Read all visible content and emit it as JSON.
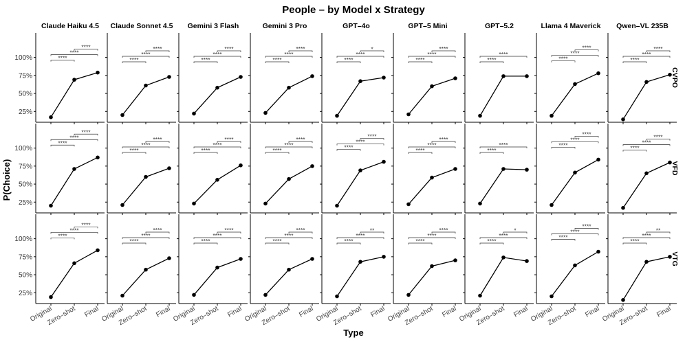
{
  "chart_data": {
    "type": "line",
    "title": "People – by Model x Strategy",
    "xlabel": "Type",
    "ylabel": "P(Choice)",
    "categories": [
      "Original",
      "Zero–shot",
      "Final"
    ],
    "y_ticks": [
      "25%",
      "50%",
      "75%",
      "100%"
    ],
    "y_tick_values": [
      0.25,
      0.5,
      0.75,
      1.0
    ],
    "ylim": [
      0.1,
      1.34
    ],
    "models": [
      "Claude Haiku 4.5",
      "Claude Sonnet 4.5",
      "Gemini 3 Flash",
      "Gemini 3 Pro",
      "GPT–4o",
      "GPT–5 Mini",
      "GPT–5.2",
      "Llama 4 Maverick",
      "Qwen–VL 235B"
    ],
    "strategies": [
      "CVPO",
      "VFD",
      "VTG"
    ],
    "values": [
      [
        [
          0.17,
          0.69,
          0.79
        ],
        [
          0.2,
          0.61,
          0.73
        ],
        [
          0.22,
          0.58,
          0.73
        ],
        [
          0.23,
          0.58,
          0.74
        ],
        [
          0.19,
          0.67,
          0.72
        ],
        [
          0.21,
          0.6,
          0.71
        ],
        [
          0.19,
          0.74,
          0.74
        ],
        [
          0.19,
          0.63,
          0.78
        ],
        [
          0.14,
          0.66,
          0.76
        ]
      ],
      [
        [
          0.2,
          0.71,
          0.87
        ],
        [
          0.21,
          0.6,
          0.72
        ],
        [
          0.23,
          0.56,
          0.76
        ],
        [
          0.23,
          0.57,
          0.75
        ],
        [
          0.2,
          0.69,
          0.81
        ],
        [
          0.22,
          0.59,
          0.71
        ],
        [
          0.23,
          0.71,
          0.7
        ],
        [
          0.21,
          0.66,
          0.84
        ],
        [
          0.17,
          0.65,
          0.8
        ]
      ],
      [
        [
          0.19,
          0.66,
          0.84
        ],
        [
          0.21,
          0.57,
          0.73
        ],
        [
          0.22,
          0.6,
          0.72
        ],
        [
          0.22,
          0.57,
          0.72
        ],
        [
          0.2,
          0.68,
          0.75
        ],
        [
          0.22,
          0.62,
          0.7
        ],
        [
          0.21,
          0.74,
          0.69
        ],
        [
          0.2,
          0.63,
          0.82
        ],
        [
          0.15,
          0.68,
          0.75
        ]
      ]
    ],
    "significance": [
      [
        [
          "****",
          "****",
          "****"
        ],
        [
          "****",
          "****",
          "****"
        ],
        [
          "****",
          "****",
          "****"
        ],
        [
          "****",
          "****",
          "****"
        ],
        [
          "****",
          "****",
          "*"
        ],
        [
          "****",
          "****",
          "****"
        ],
        [
          "****",
          "****",
          ""
        ],
        [
          "****",
          "****",
          "****"
        ],
        [
          "****",
          "****",
          "****"
        ]
      ],
      [
        [
          "****",
          "****",
          "****"
        ],
        [
          "****",
          "****",
          "****"
        ],
        [
          "****",
          "****",
          "****"
        ],
        [
          "****",
          "****",
          "****"
        ],
        [
          "****",
          "****",
          "****"
        ],
        [
          "****",
          "****",
          "****"
        ],
        [
          "****",
          "****",
          ""
        ],
        [
          "****",
          "****",
          "****"
        ],
        [
          "****",
          "****",
          "****"
        ]
      ],
      [
        [
          "****",
          "****",
          "****"
        ],
        [
          "****",
          "****",
          "****"
        ],
        [
          "****",
          "****",
          "****"
        ],
        [
          "****",
          "****",
          "****"
        ],
        [
          "****",
          "****",
          "**"
        ],
        [
          "****",
          "****",
          "****"
        ],
        [
          "****",
          "****",
          "*"
        ],
        [
          "****",
          "****",
          "****"
        ],
        [
          "****",
          "****",
          "**"
        ]
      ]
    ]
  }
}
